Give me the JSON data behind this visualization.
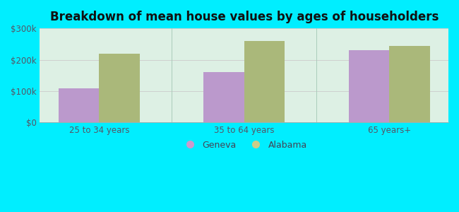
{
  "title": "Breakdown of mean house values by ages of householders",
  "categories": [
    "25 to 34 years",
    "35 to 64 years",
    "65 years+"
  ],
  "geneva_values": [
    110000,
    160000,
    230000
  ],
  "alabama_values": [
    220000,
    260000,
    245000
  ],
  "geneva_color": "#bb99cc",
  "alabama_color": "#aab87a",
  "background_outer": "#00eeff",
  "background_inner_top": "#d8f0e8",
  "background_inner_bottom": "#e8f8ee",
  "ylim": [
    0,
    300000
  ],
  "yticks": [
    0,
    100000,
    200000,
    300000
  ],
  "ytick_labels": [
    "$0",
    "$100k",
    "$200k",
    "$300k"
  ],
  "legend_labels": [
    "Geneva",
    "Alabama"
  ],
  "legend_marker_geneva": "#cc99cc",
  "legend_marker_alabama": "#cccc88",
  "bar_width": 0.28,
  "title_fontsize": 12
}
